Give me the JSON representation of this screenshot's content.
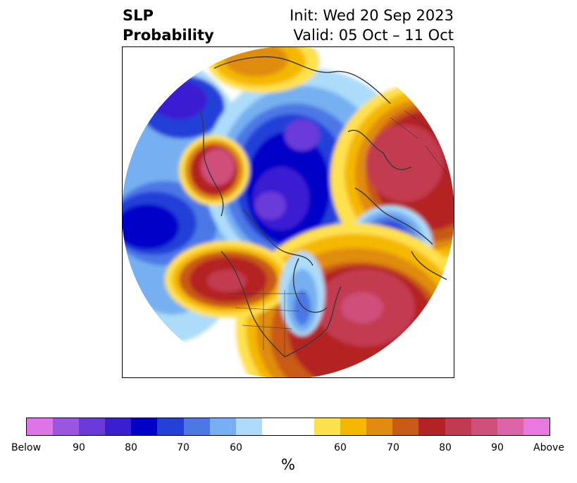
{
  "header": {
    "title_line1": "SLP",
    "title_line2": "Probability",
    "init_text": "Init: Wed 20 Sep 2023",
    "valid_text": "Valid: 05 Oct – 11 Oct"
  },
  "map": {
    "projection": "north-polar-stereographic",
    "field": "SLP probability",
    "palette_below": [
      "#dc76e6",
      "#9b55e0",
      "#6a3ad8",
      "#3a1fd2",
      "#0000c8",
      "#2340d8",
      "#4c78e6",
      "#76b0f0",
      "#acdcfa"
    ],
    "palette_neutral": "#ffffff",
    "palette_above": [
      "#ffe14d",
      "#f5b800",
      "#e08c10",
      "#c85a18",
      "#b42323",
      "#c23a50",
      "#cf507a",
      "#dc64a8",
      "#e678e0"
    ]
  },
  "colorbar": {
    "ticks": [
      {
        "label": "Below",
        "value": "below"
      },
      {
        "label": "90",
        "value": 90
      },
      {
        "label": "80",
        "value": 80
      },
      {
        "label": "70",
        "value": 70
      },
      {
        "label": "60",
        "value": 60
      },
      {
        "label": "60",
        "value": 60
      },
      {
        "label": "70",
        "value": 70
      },
      {
        "label": "80",
        "value": 80
      },
      {
        "label": "90",
        "value": 90
      },
      {
        "label": "Above",
        "value": "above"
      }
    ],
    "unit_label": "%"
  }
}
